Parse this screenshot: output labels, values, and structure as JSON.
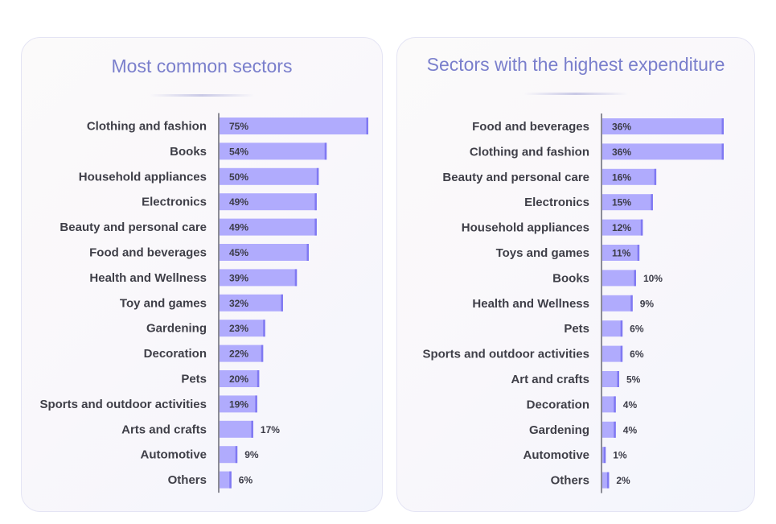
{
  "colors": {
    "bar": "#b0abfd",
    "bar_edge": "#8079f2",
    "axis": "#8c8c96",
    "title": "#7a7fcc"
  },
  "chart_data": [
    {
      "type": "bar",
      "orientation": "horizontal",
      "title": "Most common sectors",
      "unit": "%",
      "xlim": [
        0,
        75
      ],
      "categories": [
        "Clothing and fashion",
        "Books",
        "Household appliances",
        "Electronics",
        "Beauty and personal care",
        "Food and beverages",
        "Health and Wellness",
        "Toy and games",
        "Gardening",
        "Decoration",
        "Pets",
        "Sports and outdoor activities",
        "Arts and crafts",
        "Automotive",
        "Others"
      ],
      "values": [
        75,
        54,
        50,
        49,
        49,
        45,
        39,
        32,
        23,
        22,
        20,
        19,
        17,
        9,
        6
      ],
      "value_labels": [
        "75%",
        "54%",
        "50%",
        "49%",
        "49%",
        "45%",
        "39%",
        "32%",
        "23%",
        "22%",
        "20%",
        "19%",
        "17%",
        "9%",
        "6%"
      ]
    },
    {
      "type": "bar",
      "orientation": "horizontal",
      "title": "Sectors with the highest expenditure",
      "unit": "%",
      "xlim": [
        0,
        36
      ],
      "categories": [
        "Food and beverages",
        "Clothing and fashion",
        "Beauty and personal care",
        "Electronics",
        "Household appliances",
        "Toys and games",
        "Books",
        "Health and Wellness",
        "Pets",
        "Sports and outdoor activities",
        "Art and crafts",
        "Decoration",
        "Gardening",
        "Automotive",
        "Others"
      ],
      "values": [
        36,
        36,
        16,
        15,
        12,
        11,
        10,
        9,
        6,
        6,
        5,
        4,
        4,
        1,
        2
      ],
      "value_labels": [
        "36%",
        "36%",
        "16%",
        "15%",
        "12%",
        "11%",
        "10%",
        "9%",
        "6%",
        "6%",
        "5%",
        "4%",
        "4%",
        "1%",
        "2%"
      ]
    }
  ]
}
